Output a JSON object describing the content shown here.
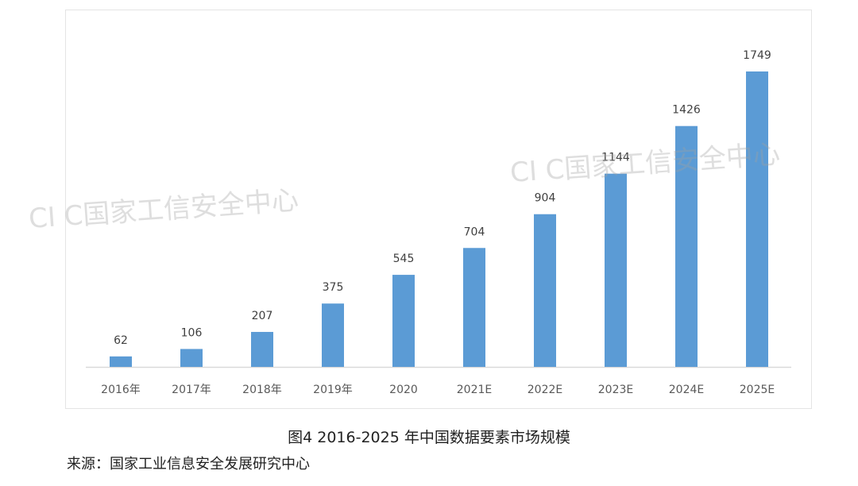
{
  "chart_data": {
    "type": "bar",
    "title": "图4 2016-2025 年中国数据要素市场规模",
    "xlabel": "",
    "ylabel": "",
    "categories": [
      "2016年",
      "2017年",
      "2018年",
      "2019年",
      "2020",
      "2021E",
      "2022E",
      "2023E",
      "2024E",
      "2025E"
    ],
    "values": [
      62,
      106,
      207,
      375,
      545,
      704,
      904,
      1144,
      1426,
      1749
    ],
    "ylim": [
      0,
      1749
    ],
    "grid": false,
    "legend": "none",
    "bar_color": "#5b9bd5"
  },
  "source": "来源：国家工业信息安全发展研究中心",
  "watermark": "CI C国家工信安全中心"
}
